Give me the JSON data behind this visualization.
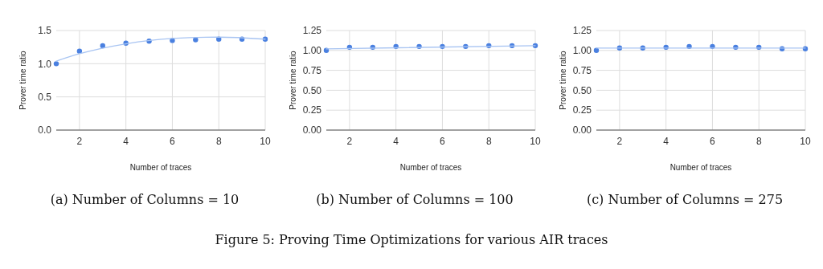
{
  "chart_data": [
    {
      "type": "scatter",
      "title": "(a) Number of Columns = 10",
      "xlabel": "Number of traces",
      "ylabel": "Prover time ratio",
      "x": [
        1,
        2,
        3,
        4,
        5,
        6,
        7,
        8,
        9,
        10
      ],
      "series": [
        {
          "marker": "circle",
          "color": "#4a80e0",
          "values": [
            1.0,
            1.19,
            1.27,
            1.31,
            1.34,
            1.35,
            1.36,
            1.37,
            1.37,
            1.37
          ]
        },
        {
          "type": "line",
          "color": "#a8c4f2",
          "x": [
            1,
            2,
            4,
            6,
            8,
            10
          ],
          "values": [
            1.04,
            1.15,
            1.3,
            1.38,
            1.4,
            1.37
          ]
        }
      ],
      "xlim": [
        1,
        10
      ],
      "xticks": [
        2,
        4,
        6,
        8,
        10
      ],
      "ylim": [
        0,
        1.5
      ],
      "yticks": [
        {
          "value": 0,
          "label": "0.0"
        },
        {
          "value": 0.5,
          "label": "0.5"
        },
        {
          "value": 1,
          "label": "1.0"
        },
        {
          "value": 1.5,
          "label": "1.5"
        }
      ],
      "grid": true,
      "annotations": [
        "Figure 5: Proving Time Optimizations for various AIR traces"
      ]
    },
    {
      "type": "scatter",
      "title": "(b) Number of Columns = 100",
      "xlabel": "Number of traces",
      "ylabel": "Prover time ratio",
      "x": [
        1,
        2,
        3,
        4,
        5,
        6,
        7,
        8,
        9,
        10
      ],
      "series": [
        {
          "marker": "circle",
          "color": "#4a80e0",
          "values": [
            1.0,
            1.04,
            1.04,
            1.05,
            1.05,
            1.05,
            1.05,
            1.06,
            1.06,
            1.06
          ]
        },
        {
          "type": "line",
          "color": "#a8c4f2",
          "x": [
            1,
            10
          ],
          "values": [
            1.02,
            1.06
          ]
        }
      ],
      "xlim": [
        1,
        10
      ],
      "xticks": [
        2,
        4,
        6,
        8,
        10
      ],
      "ylim": [
        0,
        1.25
      ],
      "yticks": [
        {
          "value": 0,
          "label": "0.00"
        },
        {
          "value": 0.25,
          "label": "0.25"
        },
        {
          "value": 0.5,
          "label": "0.50"
        },
        {
          "value": 0.75,
          "label": "0.75"
        },
        {
          "value": 1,
          "label": "1.00"
        },
        {
          "value": 1.25,
          "label": "1.25"
        }
      ],
      "grid": true
    },
    {
      "type": "scatter",
      "title": "(c) Number of Columns = 275",
      "xlabel": "Number of traces",
      "ylabel": "Prover time ratio",
      "x": [
        1,
        2,
        3,
        4,
        5,
        6,
        7,
        8,
        9,
        10
      ],
      "series": [
        {
          "marker": "circle",
          "color": "#4a80e0",
          "values": [
            1.0,
            1.03,
            1.03,
            1.04,
            1.05,
            1.05,
            1.04,
            1.04,
            1.02,
            1.02
          ]
        },
        {
          "type": "line",
          "color": "#a8c4f2",
          "x": [
            1,
            10
          ],
          "values": [
            1.03,
            1.03
          ]
        }
      ],
      "xlim": [
        1,
        10
      ],
      "xticks": [
        2,
        4,
        6,
        8,
        10
      ],
      "ylim": [
        0,
        1.25
      ],
      "yticks": [
        {
          "value": 0,
          "label": "0.00"
        },
        {
          "value": 0.25,
          "label": "0.25"
        },
        {
          "value": 0.5,
          "label": "0.50"
        },
        {
          "value": 0.75,
          "label": "0.75"
        },
        {
          "value": 1,
          "label": "1.00"
        },
        {
          "value": 1.25,
          "label": "1.25"
        }
      ],
      "grid": true
    }
  ]
}
